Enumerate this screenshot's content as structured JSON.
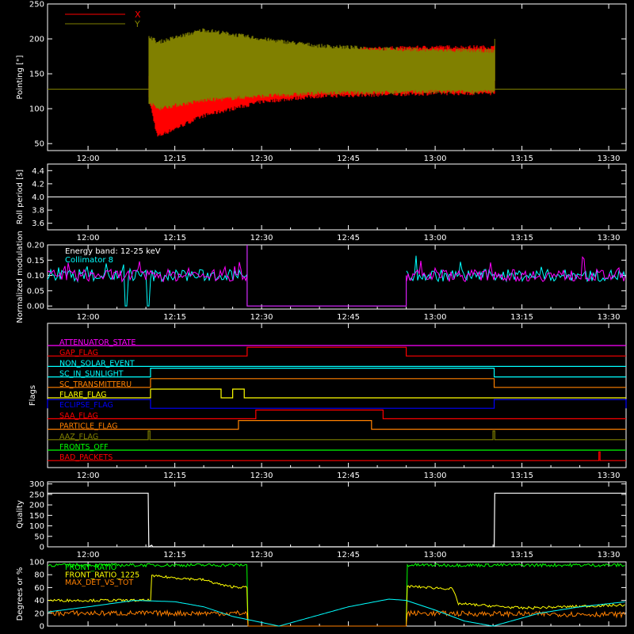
{
  "colors": {
    "background": "#000000",
    "axes": "#ffffff",
    "x_pointing": "#ff0000",
    "y_pointing": "#808000",
    "modulation_energy": "#ff00ff",
    "modulation_collimator": "#00ffff",
    "quality": "#ffffff",
    "front_ratio": "#00ff00",
    "front_ratio_1225": "#ffff00",
    "max_det_vs_tot": "#ff8000",
    "angle_curve": "#00ffff"
  },
  "time_axis": {
    "tick_labels": [
      "12:00",
      "12:15",
      "12:30",
      "12:45",
      "13:00",
      "13:15",
      "13:30"
    ],
    "tick_minutes": [
      0,
      15,
      30,
      45,
      60,
      75,
      90
    ],
    "range_minutes": [
      -7,
      93
    ]
  },
  "chart_data": [
    {
      "id": "pointing",
      "type": "line",
      "ylabel": "Pointing [\"]",
      "ylim": [
        40,
        250
      ],
      "yticks": [
        50,
        100,
        150,
        200,
        250
      ],
      "legend": [
        {
          "name": "X",
          "color": "#ff0000"
        },
        {
          "name": "Y",
          "color": "#808000"
        }
      ],
      "series": [
        {
          "name": "X",
          "envelope_x_minutes": [
            10.5,
            12,
            20,
            30,
            40,
            50,
            60,
            70.3
          ],
          "upper": [
            150,
            140,
            165,
            178,
            183,
            186,
            188,
            188
          ],
          "lower": [
            115,
            60,
            90,
            110,
            118,
            120,
            122,
            122
          ],
          "baseline": 128
        },
        {
          "name": "Y",
          "envelope_x_minutes": [
            10.5,
            12,
            20,
            30,
            40,
            50,
            60,
            70.3
          ],
          "upper": [
            205,
            195,
            213,
            200,
            190,
            186,
            184,
            183
          ],
          "lower": [
            110,
            100,
            112,
            118,
            122,
            123,
            124,
            124
          ],
          "baseline": 128
        }
      ]
    },
    {
      "id": "roll",
      "type": "line",
      "ylabel": "Roll period [s]",
      "ylim": [
        3.5,
        4.5
      ],
      "yticks": [
        3.6,
        3.8,
        4.0,
        4.2,
        4.4
      ],
      "series": [
        {
          "name": "roll",
          "x": [
            -7,
            93
          ],
          "y": [
            4.0,
            4.0
          ]
        }
      ]
    },
    {
      "id": "modulation",
      "type": "line",
      "ylabel": "Normalized modulation",
      "ylim": [
        -0.01,
        0.2
      ],
      "yticks": [
        0.0,
        0.05,
        0.1,
        0.15,
        0.2
      ],
      "annotations": [
        "Energy band: 12-25 keV",
        "Collimator 8"
      ],
      "series": [
        {
          "name": "Energy band: 12-25 keV",
          "mean": 0.1,
          "active_ranges": [
            [
              -7,
              27.5
            ],
            [
              55,
              93
            ]
          ]
        },
        {
          "name": "Collimator 8",
          "mean": 0.1,
          "active_ranges": [
            [
              -7,
              27.5
            ],
            [
              55,
              93
            ]
          ],
          "dropouts": [
            6.5,
            10.5
          ]
        }
      ]
    },
    {
      "id": "flags",
      "type": "line",
      "ylabel": "Flags",
      "series": [
        {
          "name": "ATTENUATOR_STATE",
          "color": "#ff00ff",
          "high": []
        },
        {
          "name": "GAP_FLAG",
          "color": "#ff0000",
          "high": [
            [
              27.5,
              55
            ]
          ]
        },
        {
          "name": "NON_SOLAR_EVENT",
          "color": "#00ffff",
          "high": []
        },
        {
          "name": "SC_IN_SUNLIGHT",
          "color": "#00ffff",
          "high": [
            [
              10.8,
              70.2
            ]
          ]
        },
        {
          "name": "SC_TRANSMITTERU",
          "color": "#ff8000",
          "high": [
            [
              10.8,
              70.2
            ]
          ]
        },
        {
          "name": "FLARE_FLAG",
          "color": "#ffff00",
          "high": [
            [
              10.8,
              23
            ],
            [
              25,
              27
            ]
          ]
        },
        {
          "name": "ECLIPSE_FLAG",
          "color": "#0000ff",
          "high": [
            [
              -7,
              10.8
            ],
            [
              70.2,
              93
            ]
          ]
        },
        {
          "name": "SAA_FLAG",
          "color": "#ff0000",
          "high": [
            [
              29,
              51
            ]
          ]
        },
        {
          "name": "PARTICLE_FLAG",
          "color": "#ff8000",
          "high": [
            [
              26,
              49
            ]
          ]
        },
        {
          "name": "AAZ_FLAG",
          "color": "#808000",
          "high": [
            [
              10.4,
              10.7
            ],
            [
              70.0,
              70.3
            ]
          ]
        },
        {
          "name": "FRONTS_OFF",
          "color": "#00ff00",
          "high": []
        },
        {
          "name": "BAD_PACKETS",
          "color": "#ff0000",
          "high": [
            [
              88.3,
              88.5
            ]
          ]
        }
      ]
    },
    {
      "id": "quality",
      "type": "line",
      "ylabel": "Quality",
      "ylim": [
        0,
        310
      ],
      "yticks": [
        0,
        50,
        100,
        150,
        200,
        250,
        300
      ],
      "series": [
        {
          "name": "Quality",
          "x": [
            -7,
            10.4,
            10.5,
            11.0,
            11.2,
            11.4,
            70.2,
            70.3,
            93
          ],
          "y": [
            256,
            256,
            0,
            8,
            0,
            0,
            0,
            256,
            256
          ]
        }
      ]
    },
    {
      "id": "ratios",
      "type": "line",
      "ylabel": "Degrees or %",
      "ylim": [
        0,
        100
      ],
      "yticks": [
        0,
        20,
        40,
        60,
        80,
        100
      ],
      "legend": [
        {
          "name": "FRONT_RATIO",
          "color": "#00ff00"
        },
        {
          "name": "FRONT_RATIO_1225",
          "color": "#ffff00"
        },
        {
          "name": "MAX_DET_VS_TOT",
          "color": "#ff8000"
        }
      ],
      "series": [
        {
          "name": "FRONT_RATIO",
          "x": [
            -7,
            27.5,
            27.6,
            55,
            55.1,
            93
          ],
          "y": [
            95,
            95,
            0,
            0,
            95,
            95
          ]
        },
        {
          "name": "FRONT_RATIO_1225",
          "x": [
            -7,
            10.8,
            11,
            20,
            24,
            27.5,
            27.6,
            55,
            55.1,
            63,
            64,
            75,
            93
          ],
          "y": [
            40,
            40,
            78,
            72,
            62,
            60,
            0,
            0,
            62,
            58,
            35,
            28,
            33
          ]
        },
        {
          "name": "MAX_DET_VS_TOT",
          "x": [
            -7,
            27.5,
            27.6,
            55,
            55.1,
            93
          ],
          "y": [
            20,
            20,
            0,
            0,
            20,
            18
          ]
        },
        {
          "name": "angle",
          "x": [
            -7,
            0,
            8,
            15,
            20,
            25,
            33,
            45,
            52,
            55,
            60,
            65,
            70,
            78,
            85,
            93
          ],
          "y": [
            22,
            30,
            40,
            38,
            30,
            15,
            0,
            30,
            42,
            40,
            25,
            8,
            0,
            20,
            30,
            38
          ]
        }
      ]
    }
  ]
}
